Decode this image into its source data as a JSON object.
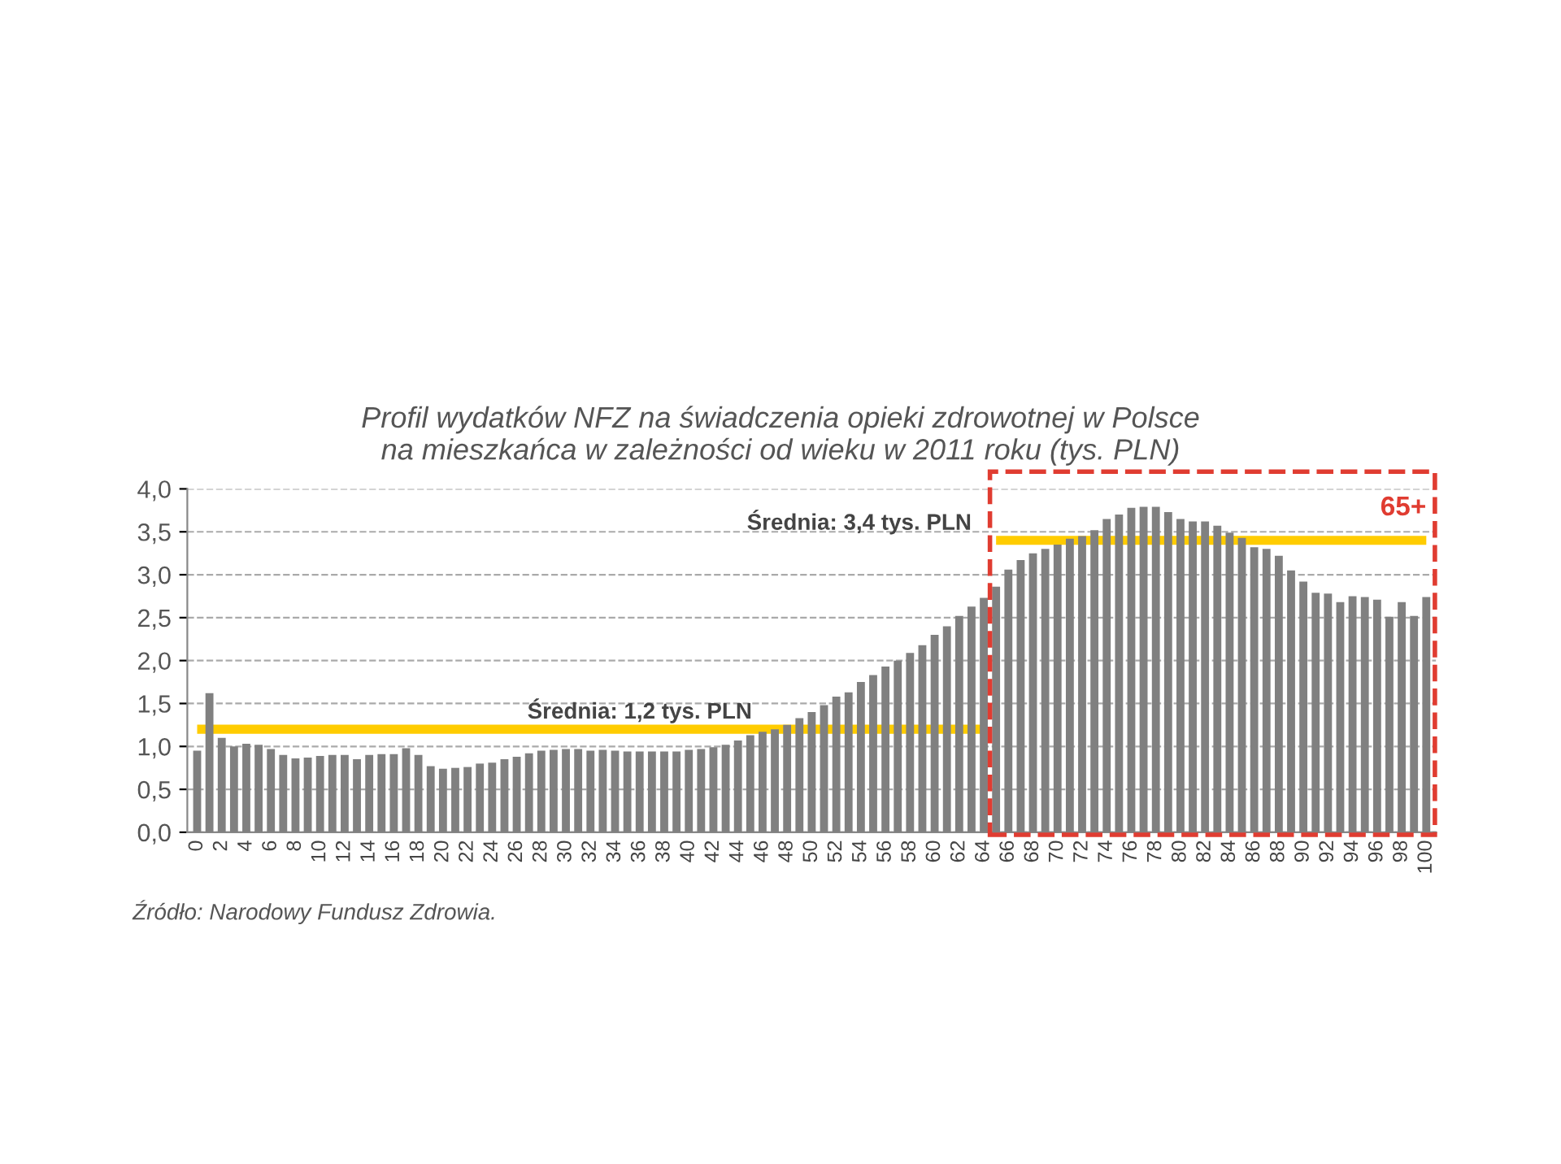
{
  "chart_data": {
    "type": "bar",
    "title": "Profil wydatków NFZ na świadczenia opieki zdrowotnej w Polsce\nna mieszkańca w zależności od wieku w 2011 roku (tys. PLN)",
    "categories": [
      "0",
      null,
      "2",
      null,
      "4",
      null,
      "6",
      null,
      "8",
      null,
      "10",
      null,
      "12",
      null,
      "14",
      null,
      "16",
      null,
      "18",
      null,
      "20",
      null,
      "22",
      null,
      "24",
      null,
      "26",
      null,
      "28",
      null,
      "30",
      null,
      "32",
      null,
      "34",
      null,
      "36",
      null,
      "38",
      null,
      "40",
      null,
      "42",
      null,
      "44",
      null,
      "46",
      null,
      "48",
      null,
      "50",
      null,
      "52",
      null,
      "54",
      null,
      "56",
      null,
      "58",
      null,
      "60",
      null,
      "62",
      null,
      "64",
      null,
      "66",
      null,
      "68",
      null,
      "70",
      null,
      "72",
      null,
      "74",
      null,
      "76",
      null,
      "78",
      null,
      "80",
      null,
      "82",
      null,
      "84",
      null,
      "86",
      null,
      "88",
      null,
      "90",
      null,
      "92",
      null,
      "94",
      null,
      "96",
      null,
      "98",
      null,
      "100"
    ],
    "series": [
      {
        "color": "#808080",
        "values": [
          0.95,
          1.62,
          1.1,
          1.0,
          1.03,
          1.02,
          0.97,
          0.9,
          0.86,
          0.87,
          0.89,
          0.9,
          0.9,
          0.85,
          0.9,
          0.91,
          0.91,
          0.98,
          0.9,
          0.77,
          0.74,
          0.75,
          0.76,
          0.8,
          0.81,
          0.85,
          0.88,
          0.92,
          0.95,
          0.96,
          0.97,
          0.97,
          0.95,
          0.96,
          0.95,
          0.94,
          0.94,
          0.94,
          0.94,
          0.94,
          0.96,
          0.97,
          0.99,
          1.02,
          1.07,
          1.13,
          1.17,
          1.2,
          1.25,
          1.33,
          1.4,
          1.48,
          1.58,
          1.63,
          1.75,
          1.83,
          1.93,
          2.0,
          2.09,
          2.18,
          2.3,
          2.4,
          2.52,
          2.63,
          2.73,
          2.86,
          3.06,
          3.17,
          3.25,
          3.3,
          3.35,
          3.42,
          3.45,
          3.52,
          3.65,
          3.7,
          3.78,
          3.79,
          3.79,
          3.73,
          3.65,
          3.62,
          3.62,
          3.57,
          3.49,
          3.43,
          3.32,
          3.3,
          3.22,
          3.05,
          2.92,
          2.79,
          2.78,
          2.68,
          2.75,
          2.74,
          2.71,
          2.51,
          2.68,
          2.52,
          2.74
        ]
      },
      {
        "type": "line",
        "color": "#ffcc00",
        "values": [
          1.2,
          1.2,
          1.2,
          1.2,
          1.2,
          1.2,
          1.2,
          1.2,
          1.2,
          1.2,
          1.2,
          1.2,
          1.2,
          1.2,
          1.2,
          1.2,
          1.2,
          1.2,
          1.2,
          1.2,
          1.2,
          1.2,
          1.2,
          1.2,
          1.2,
          1.2,
          1.2,
          1.2,
          1.2,
          1.2,
          1.2,
          1.2,
          1.2,
          1.2,
          1.2,
          1.2,
          1.2,
          1.2,
          1.2,
          1.2,
          1.2,
          1.2,
          1.2,
          1.2,
          1.2,
          1.2,
          1.2,
          1.2,
          1.2,
          1.2,
          1.2,
          1.2,
          1.2,
          1.2,
          1.2,
          1.2,
          1.2,
          1.2,
          1.2,
          1.2,
          1.2,
          1.2,
          1.2,
          1.2,
          1.2,
          null,
          null,
          null,
          null,
          null,
          null,
          null,
          null,
          null,
          null,
          null,
          null,
          null,
          null,
          null,
          null,
          null,
          null,
          null,
          null,
          null,
          null,
          null,
          null,
          null,
          null,
          null,
          null,
          null,
          null,
          null,
          null,
          null,
          null,
          null,
          null
        ]
      },
      {
        "type": "line",
        "color": "#ffcc00",
        "values": [
          null,
          null,
          null,
          null,
          null,
          null,
          null,
          null,
          null,
          null,
          null,
          null,
          null,
          null,
          null,
          null,
          null,
          null,
          null,
          null,
          null,
          null,
          null,
          null,
          null,
          null,
          null,
          null,
          null,
          null,
          null,
          null,
          null,
          null,
          null,
          null,
          null,
          null,
          null,
          null,
          null,
          null,
          null,
          null,
          null,
          null,
          null,
          null,
          null,
          null,
          null,
          null,
          null,
          null,
          null,
          null,
          null,
          null,
          null,
          null,
          null,
          null,
          null,
          null,
          null,
          3.4,
          3.4,
          3.4,
          3.4,
          3.4,
          3.4,
          3.4,
          3.4,
          3.4,
          3.4,
          3.4,
          3.4,
          3.4,
          3.4,
          3.4,
          3.4,
          3.4,
          3.4,
          3.4,
          3.4,
          3.4,
          3.4,
          3.4,
          3.4,
          3.4,
          3.4,
          3.4,
          3.4,
          3.4,
          3.4,
          3.4,
          3.4,
          3.4,
          3.4,
          3.4,
          3.4
        ]
      }
    ],
    "ylim": [
      0,
      4
    ],
    "yticks": [
      {
        "value": 0,
        "label": "0,0"
      },
      {
        "value": 0.5,
        "label": "0,5"
      },
      {
        "value": 1,
        "label": "1,0"
      },
      {
        "value": 1.5,
        "label": "1,5"
      },
      {
        "value": 2,
        "label": "2,0"
      },
      {
        "value": 2.5,
        "label": "2,5"
      },
      {
        "value": 3,
        "label": "3,0"
      },
      {
        "value": 3.5,
        "label": "3,5"
      },
      {
        "value": 4,
        "label": "4,0"
      }
    ],
    "grid": "y",
    "annotations": [
      "Średnia: 1,2 tys. PLN",
      "Średnia: 3,4 tys. PLN",
      "65+",
      "Źródło: Narodowy Fundusz Zdrowia."
    ]
  }
}
